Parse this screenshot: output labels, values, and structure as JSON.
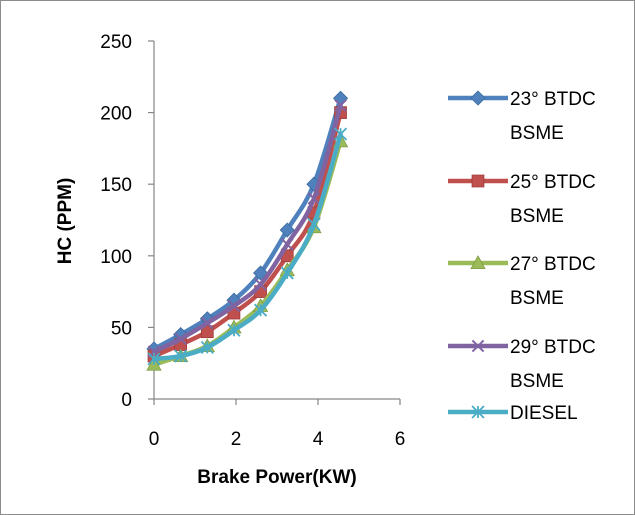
{
  "chart_data": {
    "type": "line",
    "title": "",
    "xlabel": "Brake Power(KW)",
    "ylabel": "HC (PPM)",
    "xlim": [
      0,
      6
    ],
    "ylim": [
      0,
      250
    ],
    "xticks": [
      0,
      2,
      4,
      6
    ],
    "yticks": [
      0,
      50,
      100,
      150,
      200,
      250
    ],
    "grid": false,
    "legend_position": "right",
    "series": [
      {
        "name_lines": [
          "23° BTDC",
          "BSME"
        ],
        "marker": "diamond",
        "color": "#4f81bd",
        "x": [
          0,
          0.65,
          1.3,
          1.95,
          2.6,
          3.25,
          3.9,
          4.55
        ],
        "y": [
          35,
          45,
          56,
          69,
          88,
          118,
          150,
          210
        ]
      },
      {
        "name_lines": [
          "25° BTDC",
          "BSME"
        ],
        "marker": "square",
        "color": "#c0504d",
        "x": [
          0,
          0.65,
          1.3,
          1.95,
          2.6,
          3.25,
          3.9,
          4.55
        ],
        "y": [
          30,
          38,
          47,
          60,
          75,
          100,
          130,
          200
        ]
      },
      {
        "name_lines": [
          "27° BTDC",
          "BSME"
        ],
        "marker": "triangle",
        "color": "#9bbb59",
        "x": [
          0,
          0.65,
          1.3,
          1.95,
          2.6,
          3.25,
          3.9,
          4.55
        ],
        "y": [
          24,
          30,
          37,
          50,
          65,
          90,
          120,
          180
        ]
      },
      {
        "name_lines": [
          "29° BTDC",
          "BSME"
        ],
        "marker": "x",
        "color": "#8064a2",
        "x": [
          0,
          0.65,
          1.3,
          1.95,
          2.6,
          3.25,
          3.9,
          4.55
        ],
        "y": [
          33,
          42,
          53,
          65,
          80,
          108,
          140,
          205
        ]
      },
      {
        "name_lines": [
          "DIESEL"
        ],
        "marker": "asterisk",
        "color": "#4bacc6",
        "x": [
          0,
          0.65,
          1.3,
          1.95,
          2.6,
          3.25,
          3.9,
          4.55
        ],
        "y": [
          28,
          30,
          36,
          48,
          62,
          88,
          122,
          185
        ]
      }
    ]
  }
}
